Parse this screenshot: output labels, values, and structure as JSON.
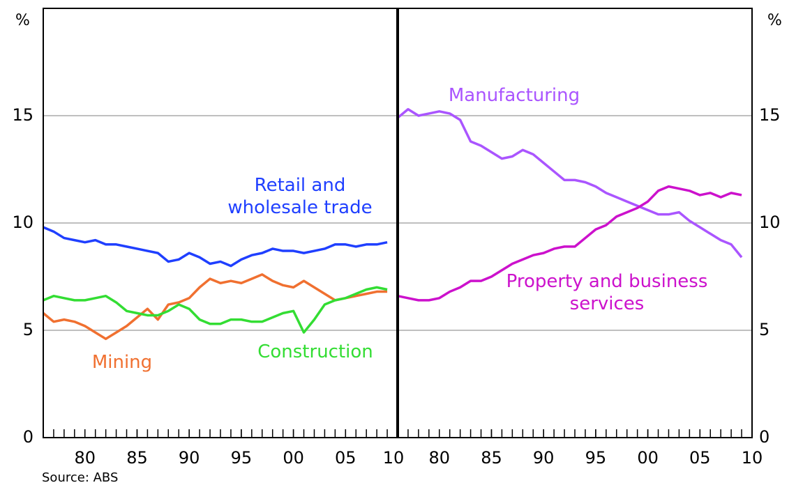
{
  "source": "Source: ABS",
  "chart_data": [
    {
      "type": "line",
      "ylabel": "%",
      "x": [
        1976,
        1977,
        1978,
        1979,
        1980,
        1981,
        1982,
        1983,
        1984,
        1985,
        1986,
        1987,
        1988,
        1989,
        1990,
        1991,
        1992,
        1993,
        1994,
        1995,
        1996,
        1997,
        1998,
        1999,
        2000,
        2001,
        2002,
        2003,
        2004,
        2005,
        2006,
        2007,
        2008,
        2009
      ],
      "series": [
        {
          "name": "Retail and wholesale trade",
          "color": "#1f3fff",
          "values": [
            9.8,
            9.6,
            9.3,
            9.2,
            9.1,
            9.2,
            9.0,
            9.0,
            8.9,
            8.8,
            8.7,
            8.6,
            8.2,
            8.3,
            8.6,
            8.4,
            8.1,
            8.2,
            8.0,
            8.3,
            8.5,
            8.6,
            8.8,
            8.7,
            8.7,
            8.6,
            8.7,
            8.8,
            9.0,
            9.0,
            8.9,
            9.0,
            9.0,
            9.1
          ]
        },
        {
          "name": "Mining",
          "color": "#f07030",
          "values": [
            5.8,
            5.4,
            5.5,
            5.4,
            5.2,
            4.9,
            4.6,
            4.9,
            5.2,
            5.6,
            6.0,
            5.5,
            6.2,
            6.3,
            6.5,
            7.0,
            7.4,
            7.2,
            7.3,
            7.2,
            7.4,
            7.6,
            7.3,
            7.1,
            7.0,
            7.3,
            7.0,
            6.7,
            6.4,
            6.5,
            6.6,
            6.7,
            6.8,
            6.8
          ]
        },
        {
          "name": "Construction",
          "color": "#33dd33",
          "values": [
            6.4,
            6.6,
            6.5,
            6.4,
            6.4,
            6.5,
            6.6,
            6.3,
            5.9,
            5.8,
            5.7,
            5.7,
            5.9,
            6.2,
            6.0,
            5.5,
            5.3,
            5.3,
            5.5,
            5.5,
            5.4,
            5.4,
            5.6,
            5.8,
            5.9,
            4.9,
            5.5,
            6.2,
            6.4,
            6.5,
            6.7,
            6.9,
            7.0,
            6.9
          ]
        }
      ],
      "xlim": [
        1976,
        2010
      ],
      "xticks": [
        {
          "value": 1980,
          "label": "80"
        },
        {
          "value": 1985,
          "label": "85"
        },
        {
          "value": 1990,
          "label": "90"
        },
        {
          "value": 1995,
          "label": "95"
        },
        {
          "value": 2000,
          "label": "00"
        },
        {
          "value": 2005,
          "label": "05"
        },
        {
          "value": 2010,
          "label": "10"
        }
      ],
      "ylim": [
        0,
        20
      ],
      "yticks": [
        0,
        5,
        10,
        15
      ],
      "grid": true
    },
    {
      "type": "line",
      "ylabel": "%",
      "x": [
        1976,
        1977,
        1978,
        1979,
        1980,
        1981,
        1982,
        1983,
        1984,
        1985,
        1986,
        1987,
        1988,
        1989,
        1990,
        1991,
        1992,
        1993,
        1994,
        1995,
        1996,
        1997,
        1998,
        1999,
        2000,
        2001,
        2002,
        2003,
        2004,
        2005,
        2006,
        2007,
        2008,
        2009
      ],
      "series": [
        {
          "name": "Manufacturing",
          "color": "#aa55ff",
          "values": [
            14.9,
            15.3,
            15.0,
            15.1,
            15.2,
            15.1,
            14.8,
            13.8,
            13.6,
            13.3,
            13.0,
            13.1,
            13.4,
            13.2,
            12.8,
            12.4,
            12.0,
            12.0,
            11.9,
            11.7,
            11.4,
            11.2,
            11.0,
            10.8,
            10.6,
            10.4,
            10.4,
            10.5,
            10.1,
            9.8,
            9.5,
            9.2,
            9.0,
            8.4
          ]
        },
        {
          "name": "Property and business services",
          "color": "#cc11cc",
          "values": [
            6.6,
            6.5,
            6.4,
            6.4,
            6.5,
            6.8,
            7.0,
            7.3,
            7.3,
            7.5,
            7.8,
            8.1,
            8.3,
            8.5,
            8.6,
            8.8,
            8.9,
            8.9,
            9.3,
            9.7,
            9.9,
            10.3,
            10.5,
            10.7,
            11.0,
            11.5,
            11.7,
            11.6,
            11.5,
            11.3,
            11.4,
            11.2,
            11.4,
            11.3
          ]
        }
      ],
      "xlim": [
        1976,
        2010
      ],
      "xticks": [
        {
          "value": 1980,
          "label": "80"
        },
        {
          "value": 1985,
          "label": "85"
        },
        {
          "value": 1990,
          "label": "90"
        },
        {
          "value": 1995,
          "label": "95"
        },
        {
          "value": 2000,
          "label": "00"
        },
        {
          "value": 2005,
          "label": "05"
        },
        {
          "value": 2010,
          "label": "10"
        }
      ],
      "ylim": [
        0,
        20
      ],
      "yticks": [
        0,
        5,
        10,
        15
      ],
      "grid": true
    }
  ]
}
